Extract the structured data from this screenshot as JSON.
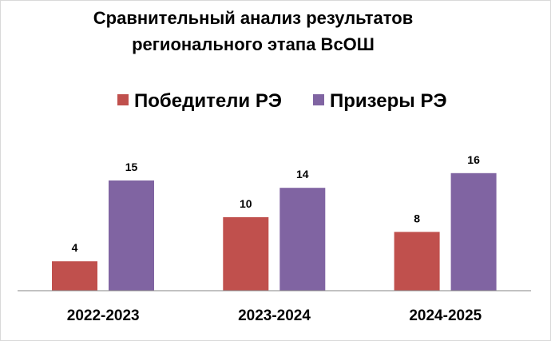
{
  "chart_data": {
    "type": "bar",
    "title_lines": [
      "Сравнительный анализ результатов",
      "регионального этапа ВсОШ"
    ],
    "categories": [
      "2022-2023",
      "2023-2024",
      "2024-2025"
    ],
    "series": [
      {
        "name": "Победители РЭ",
        "values": [
          4,
          10,
          8
        ],
        "color": "#c0504d"
      },
      {
        "name": "Призеры РЭ",
        "values": [
          15,
          14,
          16
        ],
        "color": "#8064a2"
      }
    ],
    "ylim": [
      0,
      20
    ],
    "grid": false,
    "legend_position": "top"
  },
  "colors": {
    "axis": "#868686",
    "frame_border": "#d9d9d9"
  }
}
